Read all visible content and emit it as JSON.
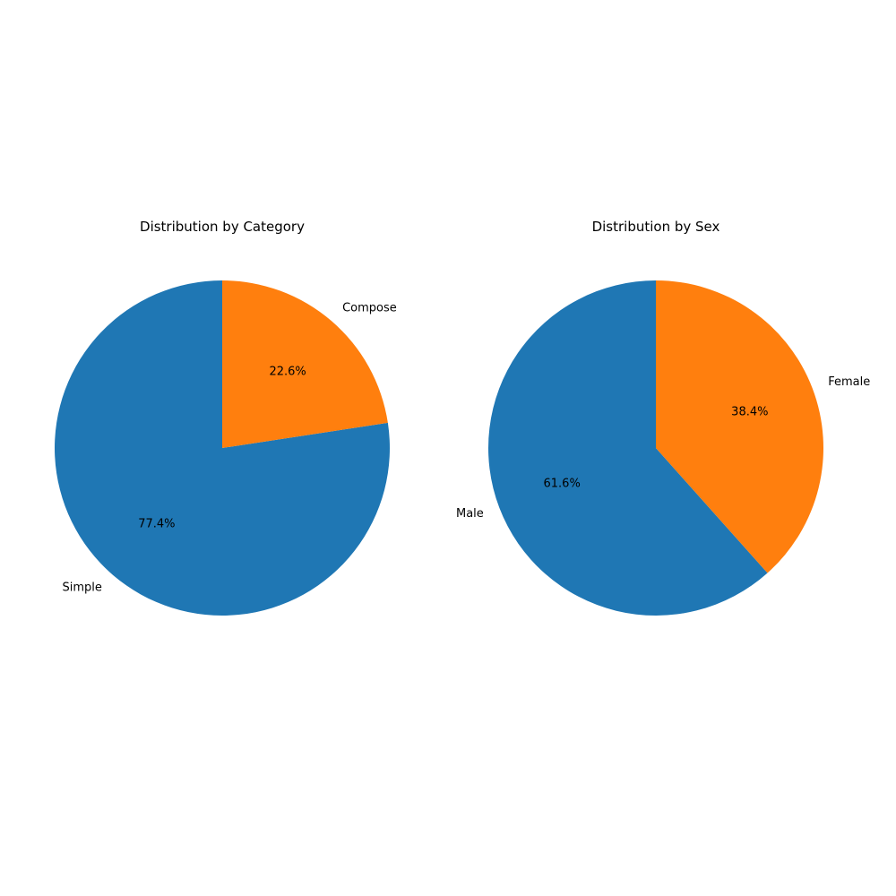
{
  "chart_data": [
    {
      "type": "pie",
      "title": "Distribution by Category",
      "categories": [
        "Simple",
        "Compose"
      ],
      "values": [
        77.4,
        22.6
      ],
      "value_labels": [
        "77.4%",
        "22.6%"
      ],
      "colors": [
        "#1f77b4",
        "#ff7f0e"
      ],
      "start_angle_deg": 90,
      "direction": "counterclockwise"
    },
    {
      "type": "pie",
      "title": "Distribution by Sex",
      "categories": [
        "Male",
        "Female"
      ],
      "values": [
        61.6,
        38.4
      ],
      "value_labels": [
        "61.6%",
        "38.4%"
      ],
      "colors": [
        "#1f77b4",
        "#ff7f0e"
      ],
      "start_angle_deg": 90,
      "direction": "counterclockwise"
    }
  ]
}
